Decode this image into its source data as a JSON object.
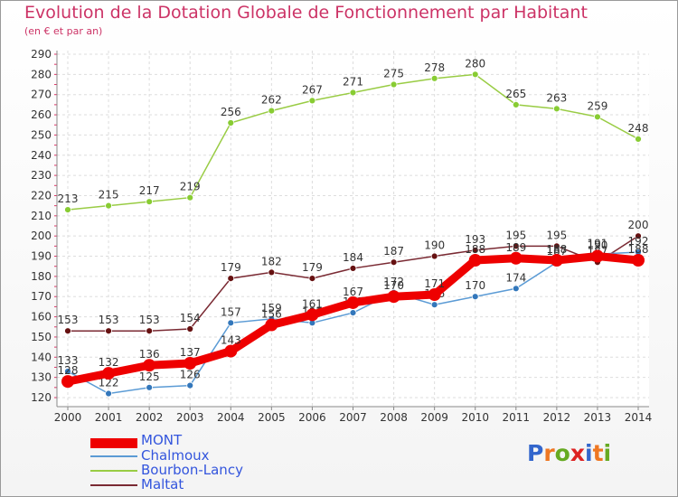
{
  "chart_data": {
    "type": "line",
    "title": "Evolution de la Dotation Globale de Fonctionnement par Habitant",
    "subtitle": "(en € et par an)",
    "xlabel": "",
    "ylabel": "",
    "ylim": [
      120,
      290
    ],
    "y_ticks": [
      120,
      130,
      140,
      150,
      160,
      170,
      180,
      190,
      200,
      210,
      220,
      230,
      240,
      250,
      260,
      270,
      280,
      290
    ],
    "categories": [
      "2000",
      "2001",
      "2002",
      "2003",
      "2004",
      "2005",
      "2006",
      "2007",
      "2008",
      "2009",
      "2010",
      "2011",
      "2012",
      "2013",
      "2014"
    ],
    "grid": true,
    "legend_position": "bottom-left",
    "series": [
      {
        "name": "Bourbon-Lancy",
        "color": "#99cc44",
        "marker": "#88cc33",
        "values": [
          213,
          215,
          217,
          219,
          256,
          262,
          267,
          271,
          275,
          278,
          280,
          265,
          263,
          259,
          248
        ]
      },
      {
        "name": "Maltat",
        "color": "#7a2a33",
        "marker": "#661111",
        "values": [
          153,
          153,
          153,
          154,
          179,
          182,
          179,
          184,
          187,
          190,
          193,
          195,
          195,
          187,
          200
        ]
      },
      {
        "name": "Chalmoux",
        "color": "#5b9bd5",
        "marker": "#3377bb",
        "values": [
          133,
          122,
          125,
          126,
          157,
          159,
          157,
          162,
          172,
          166,
          170,
          174,
          187,
          191,
          192
        ]
      },
      {
        "name": "MONT",
        "color": "#ee0000",
        "marker": "#ee0000",
        "values": [
          128,
          132,
          136,
          137,
          143,
          156,
          161,
          167,
          170,
          171,
          188,
          189,
          188,
          190,
          188
        ]
      }
    ],
    "legend_order": [
      "MONT",
      "Chalmoux",
      "Bourbon-Lancy",
      "Maltat"
    ]
  },
  "logo": {
    "text": "Proxiti",
    "letters": [
      "P",
      "r",
      "o",
      "x",
      "i",
      "t",
      "i"
    ],
    "colors": [
      "#3366cc",
      "#ee7722",
      "#66aa22",
      "#dd2222",
      "#3366cc",
      "#ee7722",
      "#66aa22"
    ]
  }
}
